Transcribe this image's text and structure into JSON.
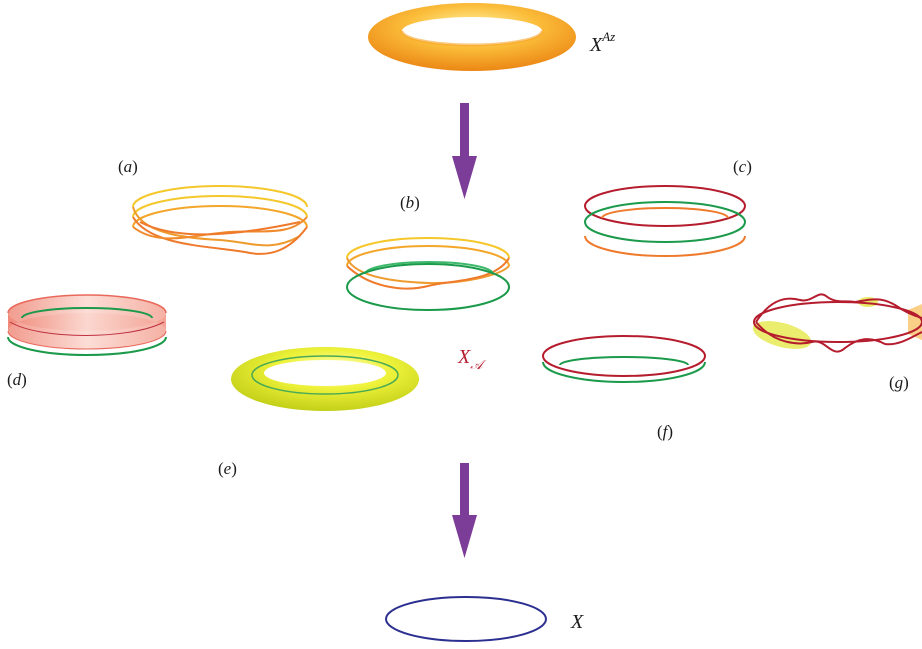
{
  "labels": {
    "top_space": "X",
    "top_space_sup": "Az",
    "middle_space": "X",
    "middle_space_sub": "𝒜",
    "bottom_space": "X",
    "a": "a",
    "b": "b",
    "c": "c",
    "d": "d",
    "e": "e",
    "f": "f",
    "g": "g"
  },
  "colors": {
    "arrow": "#7b3d98",
    "torus_top": "#f7a321",
    "torus_top_highlight": "#ffe58a",
    "torus_green_yellow": "#d9e61f",
    "ring_yellow": "#f5c72a",
    "ring_orange": "#ef7a2c",
    "ring_green": "#1a9a4a",
    "ring_red": "#b51c2e",
    "band_pink": "#f29b8c",
    "base_circle": "#2b2f8f",
    "label_red": "#b51c2e"
  }
}
